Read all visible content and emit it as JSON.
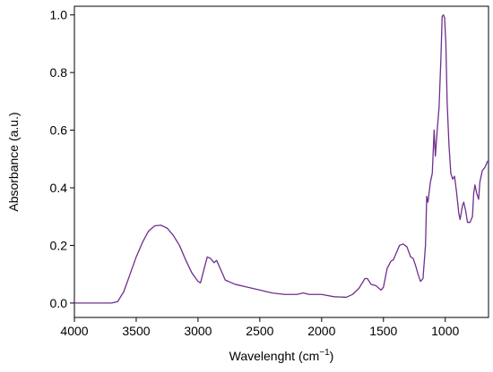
{
  "chart_data": {
    "type": "line",
    "x_label": {
      "text": "Wavelenght (cm",
      "superscript": "−1",
      "suffix": ")"
    },
    "y_label": "Absorbance (a.u.)",
    "xlim": [
      4000,
      650
    ],
    "ylim": [
      -0.05,
      1.03
    ],
    "xticks": [
      4000,
      3500,
      3000,
      2500,
      2000,
      1500,
      1000
    ],
    "yticks": [
      {
        "value": 0,
        "label": "0.0"
      },
      0.2,
      0.4,
      0.6,
      0.8,
      {
        "value": 1,
        "label": "1.0"
      }
    ],
    "x": [
      4000,
      3700,
      3650,
      3600,
      3550,
      3500,
      3450,
      3400,
      3350,
      3300,
      3250,
      3200,
      3150,
      3100,
      3050,
      3000,
      2980,
      2950,
      2925,
      2900,
      2870,
      2850,
      2820,
      2780,
      2700,
      2600,
      2500,
      2400,
      2300,
      2200,
      2150,
      2100,
      2000,
      1900,
      1800,
      1750,
      1700,
      1650,
      1630,
      1600,
      1560,
      1520,
      1500,
      1470,
      1440,
      1420,
      1400,
      1370,
      1340,
      1310,
      1280,
      1260,
      1240,
      1220,
      1200,
      1180,
      1160,
      1150,
      1140,
      1120,
      1105,
      1090,
      1080,
      1065,
      1050,
      1035,
      1025,
      1015,
      1005,
      995,
      985,
      970,
      955,
      940,
      925,
      910,
      890,
      880,
      860,
      850,
      835,
      820,
      800,
      780,
      770,
      760,
      745,
      730,
      720,
      700,
      680,
      660,
      650
    ],
    "series": [
      {
        "color": "#6f2f8f",
        "values": [
          0,
          0,
          0.005,
          0.04,
          0.1,
          0.16,
          0.21,
          0.25,
          0.268,
          0.27,
          0.26,
          0.235,
          0.2,
          0.15,
          0.105,
          0.075,
          0.07,
          0.12,
          0.16,
          0.155,
          0.14,
          0.148,
          0.12,
          0.08,
          0.065,
          0.055,
          0.045,
          0.035,
          0.03,
          0.03,
          0.035,
          0.03,
          0.03,
          0.022,
          0.02,
          0.03,
          0.05,
          0.085,
          0.085,
          0.065,
          0.06,
          0.045,
          0.055,
          0.12,
          0.145,
          0.15,
          0.17,
          0.2,
          0.205,
          0.195,
          0.16,
          0.155,
          0.13,
          0.1,
          0.075,
          0.085,
          0.2,
          0.37,
          0.35,
          0.42,
          0.45,
          0.6,
          0.51,
          0.6,
          0.68,
          0.85,
          0.995,
          1.0,
          0.99,
          0.9,
          0.7,
          0.55,
          0.45,
          0.43,
          0.44,
          0.39,
          0.31,
          0.29,
          0.34,
          0.35,
          0.32,
          0.28,
          0.28,
          0.3,
          0.38,
          0.41,
          0.38,
          0.36,
          0.42,
          0.46,
          0.47,
          0.49,
          0.495
        ]
      }
    ]
  }
}
